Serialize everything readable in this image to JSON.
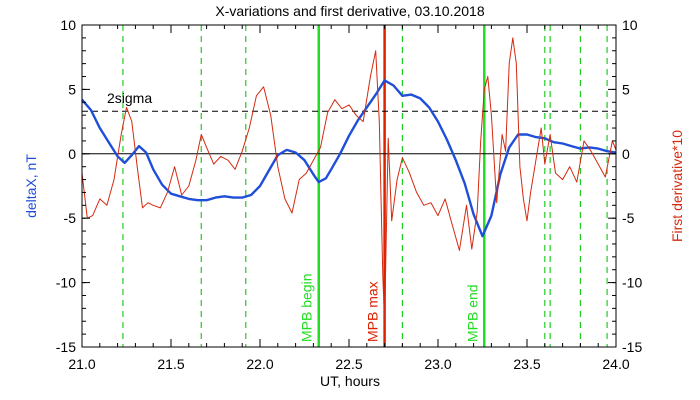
{
  "chart_data": {
    "type": "line",
    "title": "X-variations and first derivative, 03.10.2018",
    "xlabel": "UT, hours",
    "ylabel_left": "deltaX, nT",
    "ylabel_right": "First derivative*10",
    "xlim": [
      21.0,
      24.0
    ],
    "ylim": [
      -15,
      10
    ],
    "xticks": [
      "21.0",
      "21.5",
      "22.0",
      "22.5",
      "23.0",
      "23.5",
      "24.0"
    ],
    "yticks": [
      "-15",
      "-10",
      "-5",
      "0",
      "5",
      "10"
    ],
    "yticks_right": [
      "-15",
      "-10",
      "-5",
      "0",
      "5",
      "10"
    ],
    "sigma_label": "2sigma",
    "sigma_level": 3.3,
    "zero_level": 0,
    "colors": {
      "deltax": "#1f4fd8",
      "derivative": "#d42a10",
      "mpb_begin": "#22dd22",
      "mpb_max": "#dd2200",
      "mpb_end": "#22dd22",
      "dashed_markers": "#22cc22"
    },
    "series": [
      {
        "name": "deltaX, nT",
        "axis": "left",
        "x": [
          21.0,
          21.05,
          21.1,
          21.15,
          21.2,
          21.24,
          21.28,
          21.32,
          21.36,
          21.4,
          21.45,
          21.5,
          21.55,
          21.6,
          21.65,
          21.7,
          21.75,
          21.8,
          21.85,
          21.9,
          21.95,
          22.0,
          22.05,
          22.1,
          22.15,
          22.2,
          22.25,
          22.3,
          22.33,
          22.37,
          22.4,
          22.45,
          22.5,
          22.55,
          22.6,
          22.65,
          22.7,
          22.75,
          22.8,
          22.85,
          22.9,
          22.95,
          23.0,
          23.05,
          23.1,
          23.15,
          23.2,
          23.25,
          23.3,
          23.35,
          23.4,
          23.45,
          23.5,
          23.55,
          23.6,
          23.65,
          23.7,
          23.75,
          23.8,
          23.85,
          23.9,
          23.95,
          24.0
        ],
        "values": [
          4.2,
          3.4,
          2.0,
          0.9,
          -0.2,
          -0.7,
          -0.1,
          0.6,
          0.1,
          -1.2,
          -2.4,
          -3.1,
          -3.3,
          -3.5,
          -3.6,
          -3.6,
          -3.4,
          -3.3,
          -3.4,
          -3.4,
          -3.2,
          -2.5,
          -1.3,
          -0.1,
          0.3,
          0.1,
          -0.5,
          -1.6,
          -2.2,
          -1.9,
          -1.2,
          0.0,
          1.4,
          2.6,
          3.6,
          4.6,
          5.7,
          5.3,
          4.5,
          4.6,
          4.3,
          3.6,
          2.5,
          1.1,
          -0.5,
          -2.3,
          -4.7,
          -6.4,
          -4.8,
          -1.6,
          0.5,
          1.5,
          1.5,
          1.3,
          1.2,
          0.9,
          0.8,
          0.6,
          0.4,
          0.5,
          0.4,
          0.2,
          0.1
        ]
      },
      {
        "name": "First derivative*10",
        "axis": "right",
        "x": [
          21.0,
          21.03,
          21.06,
          21.1,
          21.14,
          21.18,
          21.22,
          21.25,
          21.28,
          21.31,
          21.34,
          21.37,
          21.4,
          21.44,
          21.48,
          21.52,
          21.56,
          21.6,
          21.64,
          21.67,
          21.7,
          21.74,
          21.78,
          21.82,
          21.86,
          21.9,
          21.94,
          21.98,
          22.02,
          22.06,
          22.1,
          22.14,
          22.18,
          22.22,
          22.26,
          22.3,
          22.34,
          22.38,
          22.42,
          22.46,
          22.5,
          22.54,
          22.58,
          22.62,
          22.65,
          22.67,
          22.69,
          22.7,
          22.72,
          22.74,
          22.77,
          22.8,
          22.84,
          22.88,
          22.92,
          22.96,
          23.0,
          23.04,
          23.08,
          23.12,
          23.16,
          23.19,
          23.22,
          23.24,
          23.26,
          23.28,
          23.3,
          23.33,
          23.36,
          23.38,
          23.4,
          23.42,
          23.44,
          23.46,
          23.48,
          23.5,
          23.52,
          23.55,
          23.58,
          23.6,
          23.63,
          23.66,
          23.7,
          23.74,
          23.78,
          23.82,
          23.86,
          23.9,
          23.94,
          23.98,
          24.0
        ],
        "values": [
          -1.5,
          -5.0,
          -4.8,
          -3.5,
          -4.0,
          -2.0,
          1.5,
          3.6,
          2.5,
          -1.0,
          -4.2,
          -3.8,
          -4.0,
          -4.2,
          -3.0,
          -1.0,
          -3.2,
          -2.5,
          -0.5,
          1.5,
          0.5,
          -0.8,
          -0.2,
          -0.5,
          -1.2,
          0.2,
          2.0,
          4.5,
          5.2,
          3.0,
          -1.0,
          -3.5,
          -4.6,
          -2.0,
          -1.5,
          -0.5,
          0.5,
          3.2,
          4.2,
          3.5,
          3.8,
          3.0,
          2.5,
          6.0,
          8.0,
          2.5,
          -9.5,
          -13.0,
          1.2,
          -5.2,
          -2.0,
          -0.3,
          -1.5,
          -3.0,
          -4.0,
          -3.8,
          -4.8,
          -3.5,
          -5.5,
          -7.5,
          -4.0,
          -7.4,
          -4.5,
          1.0,
          5.0,
          6.0,
          3.0,
          -3.8,
          1.5,
          0.2,
          7.0,
          9.0,
          7.0,
          -1.0,
          -3.5,
          -5.2,
          -3.0,
          -0.5,
          2.0,
          -0.8,
          1.5,
          -1.5,
          -2.0,
          -1.0,
          -2.2,
          1.0,
          0.2,
          -0.8,
          -1.8,
          1.0,
          0.3
        ]
      }
    ],
    "markers": [
      {
        "x": 21.23,
        "style": "dashed",
        "color": "#22cc22"
      },
      {
        "x": 21.67,
        "style": "dashed",
        "color": "#22cc22"
      },
      {
        "x": 21.92,
        "style": "dashed",
        "color": "#22cc22"
      },
      {
        "x": 22.8,
        "style": "dashed",
        "color": "#22cc22"
      },
      {
        "x": 23.6,
        "style": "dashed",
        "color": "#22cc22"
      },
      {
        "x": 23.63,
        "style": "dashed",
        "color": "#22cc22"
      },
      {
        "x": 23.8,
        "style": "dashed",
        "color": "#22cc22"
      },
      {
        "x": 23.95,
        "style": "dashed",
        "color": "#22cc22"
      },
      {
        "x": 22.33,
        "style": "solid",
        "color": "#22dd22",
        "label": "MPB begin"
      },
      {
        "x": 22.7,
        "style": "solid",
        "color": "#dd2200",
        "label": "MPB max"
      },
      {
        "x": 23.26,
        "style": "solid",
        "color": "#22dd22",
        "label": "MPB end"
      }
    ]
  }
}
